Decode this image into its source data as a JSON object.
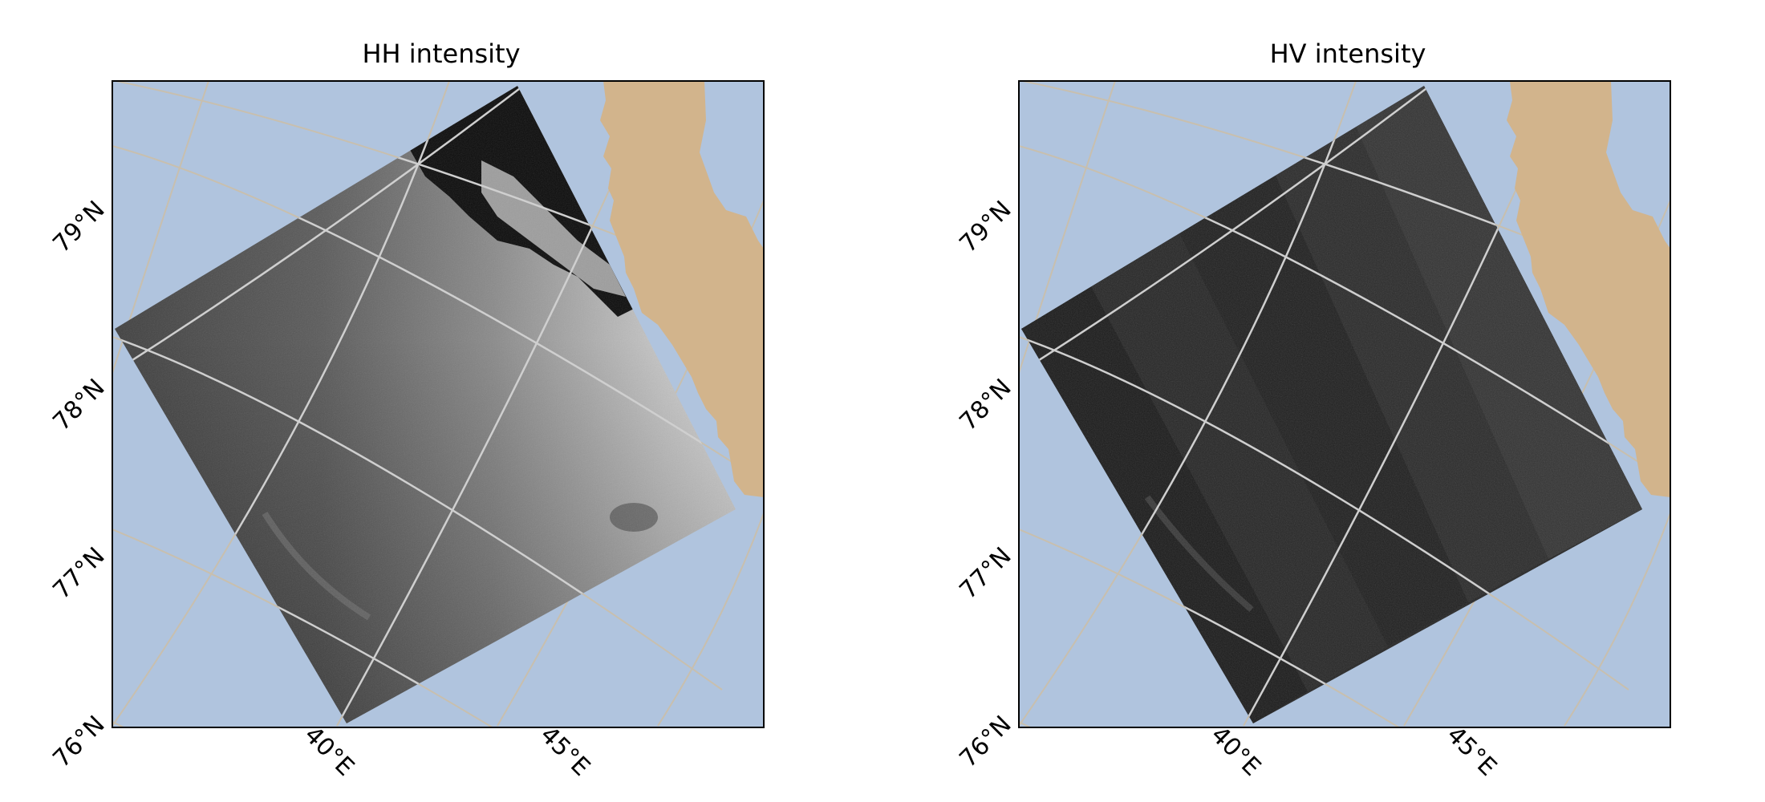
{
  "colors": {
    "ocean": "#b0c4de",
    "land": "#d2b48c",
    "graticule_outside": "#c8bfae",
    "graticule_inside": "#cfcfcf",
    "frame": "#000000"
  },
  "axes": {
    "lat_ticks": [
      "76°N",
      "77°N",
      "78°N",
      "79°N"
    ],
    "lon_ticks": [
      "40°E",
      "45°E"
    ]
  },
  "panels": [
    {
      "id": "hh",
      "title": "HH intensity",
      "image_style": "hh",
      "icon": "sar-hh-swath"
    },
    {
      "id": "hv",
      "title": "HV intensity",
      "image_style": "hv",
      "icon": "sar-hv-swath"
    }
  ]
}
